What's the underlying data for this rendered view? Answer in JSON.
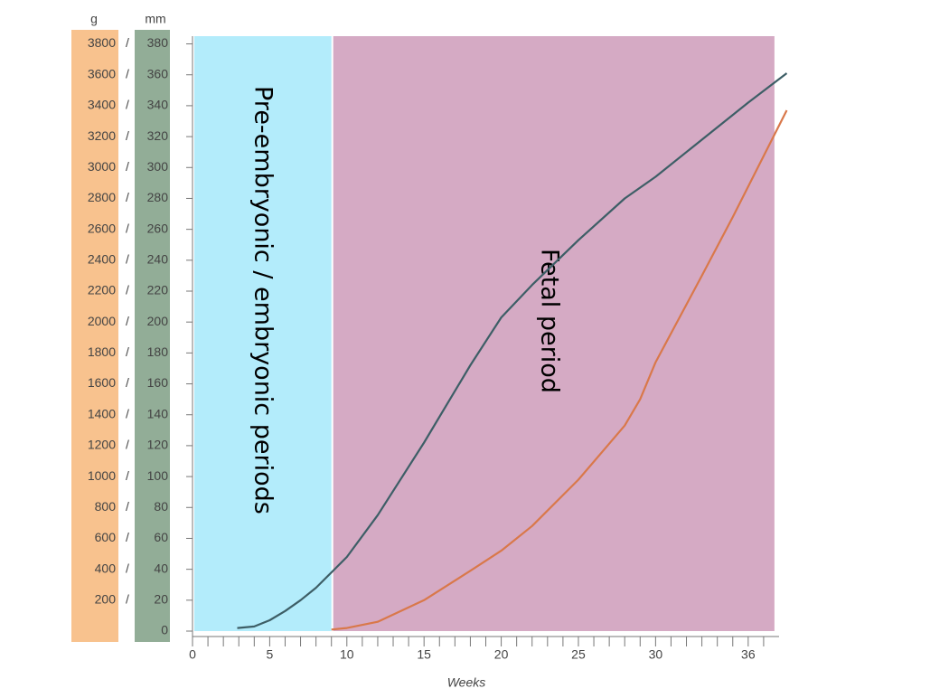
{
  "chart_data": {
    "type": "line",
    "xlabel": "Weeks",
    "ylabel": "mm",
    "y2label": "g",
    "xlim": [
      0,
      38
    ],
    "xticks": [
      0,
      5,
      10,
      15,
      20,
      25,
      30,
      36
    ],
    "xminorticks": [
      1,
      2,
      3,
      4,
      6,
      7,
      8,
      9,
      11,
      12,
      13,
      14,
      16,
      17,
      18,
      19,
      21,
      22,
      23,
      24,
      26,
      27,
      28,
      29,
      31,
      32,
      33,
      34,
      35,
      37
    ],
    "ylim": [
      0,
      385
    ],
    "yticks": [
      0,
      20,
      40,
      60,
      80,
      100,
      120,
      140,
      160,
      180,
      200,
      220,
      240,
      260,
      280,
      300,
      320,
      340,
      360,
      380
    ],
    "y2lim": [
      0,
      3850
    ],
    "y2ticks": [
      200,
      400,
      600,
      800,
      1000,
      1200,
      1400,
      1600,
      1800,
      2000,
      2200,
      2400,
      2600,
      2800,
      3000,
      3200,
      3400,
      3600,
      3800
    ],
    "regions": [
      {
        "label": "Pre-embryonic / embryonic periods",
        "start": 0,
        "end": 9,
        "color": "#b3ecfb"
      },
      {
        "label": "Fetal period",
        "start": 9,
        "end": 37.7,
        "color": "#d5aac4"
      }
    ],
    "series": [
      {
        "color": "#3d5e66",
        "x": [
          2.9,
          4,
          5,
          6,
          7,
          8,
          9,
          10,
          12,
          15,
          18,
          20,
          22,
          25,
          28,
          30,
          33,
          36,
          38.5
        ],
        "values": [
          2,
          3,
          7,
          13,
          20,
          28,
          38,
          48,
          75,
          122,
          172,
          203,
          224,
          253,
          280,
          294,
          318,
          342,
          361
        ]
      },
      {
        "color": "#d9784a",
        "axis": "y2",
        "x": [
          9,
          10,
          12,
          15,
          18,
          20,
          22,
          25,
          28,
          29,
          30,
          33,
          35,
          38.5
        ],
        "values": [
          10,
          20,
          60,
          200,
          390,
          520,
          680,
          980,
          1330,
          1500,
          1740,
          2300,
          2680,
          3370
        ]
      }
    ]
  }
}
